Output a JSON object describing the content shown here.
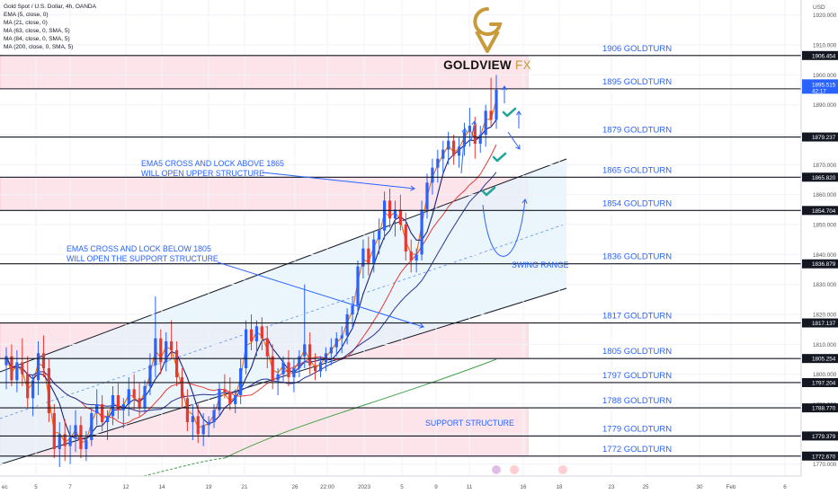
{
  "instrument": {
    "title": "Gold Spot / U.S. Dollar, 4h, OANDA",
    "indicators": [
      "EMA (5, close, 0)",
      "MA (21, close, 0)",
      "MA (63, close, 0, SMA, 5)",
      "MA (84, close, 0, SMA, 5)",
      "MA (200, close, 0, SMA, 5)"
    ]
  },
  "brand": {
    "name": "GOLDVIEW",
    "suffix": "FX"
  },
  "colors": {
    "zone_fill": "#fde4ea",
    "channel_fill": "#e4f3fb",
    "label_blue": "#2962ff",
    "candle_up": "#2962ff",
    "candle_down": "#e53935",
    "ema5": "#ef6c00",
    "ma21": "#1a237e",
    "ma63": "#e53935",
    "ma84": "#283593",
    "ma200": "#43a047"
  },
  "axis": {
    "currency": "USD",
    "y_ticks": [
      1920,
      1910,
      1900,
      1890,
      1880,
      1870,
      1860,
      1850,
      1840,
      1830,
      1820,
      1810,
      1800,
      1790,
      1780,
      1770
    ],
    "y_tick_labels": [
      "1920.000",
      "1910.000",
      "1900.000",
      "1890.000",
      "1880.000",
      "1870.000",
      "1860.000",
      "1850.000",
      "1840.000",
      "1830.000",
      "1820.000",
      "1810.000",
      "1800.000",
      "1790.000",
      "1780.000",
      "1770.000"
    ],
    "x_labels": [
      "ec",
      "5",
      "7",
      "12",
      "14",
      "19",
      "21",
      "26",
      "22:00",
      "2023",
      "5",
      "9",
      "11",
      "16",
      "18",
      "23",
      "25",
      "30",
      "Feb",
      "6"
    ]
  },
  "chart_data": {
    "type": "candlestick",
    "y_range": [
      1766,
      1925
    ],
    "current_price": "1895.515",
    "countdown": "42:17",
    "level_tags": [
      "1906.454",
      "1895.337",
      "1879.237",
      "1865.820",
      "1854.704",
      "1836.879",
      "1817.137",
      "1805.254",
      "1797.204",
      "1788.770",
      "1779.379",
      "1772.670"
    ],
    "levels": [
      {
        "value": 1906.454,
        "label": "1906 GOLDTURN"
      },
      {
        "value": 1895.337,
        "label": "1895 GOLDTURN"
      },
      {
        "value": 1879.237,
        "label": "1879 GOLDTURN"
      },
      {
        "value": 1865.82,
        "label": "1865 GOLDTURN"
      },
      {
        "value": 1854.704,
        "label": "1854 GOLDTURN"
      },
      {
        "value": 1836.879,
        "label": "1836 GOLDTURN"
      },
      {
        "value": 1817.137,
        "label": "1817 GOLDTURN"
      },
      {
        "value": 1805.254,
        "label": "1805 GOLDTURN"
      },
      {
        "value": 1797.204,
        "label": "1797 GOLDTURN"
      },
      {
        "value": 1788.77,
        "label": "1788 GOLDTURN"
      },
      {
        "value": 1779.379,
        "label": "1779 GOLDTURN"
      },
      {
        "value": 1772.67,
        "label": "1772 GOLDTURN"
      }
    ],
    "zones": [
      {
        "from": 1895.3,
        "to": 1906.5,
        "x_end": 0.63
      },
      {
        "from": 1854.7,
        "to": 1865.8,
        "x_end": 0.63
      },
      {
        "from": 1805.3,
        "to": 1817.1,
        "x_end": 0.63
      },
      {
        "from": 1772.7,
        "to": 1788.8,
        "x_end": 0.63
      }
    ],
    "annotations": [
      {
        "text": [
          "EMA5 CROSS AND LOCK ABOVE 1865",
          "WILL OPEN UPPER STRUCTURE"
        ]
      },
      {
        "text": [
          "EMA5 CROSS AND LOCK BELOW 1805",
          "WILL OPEN THE SUPPORT STRUCTURE"
        ]
      },
      {
        "text": [
          "SWING RANGE"
        ]
      },
      {
        "text": [
          "SUPPORT STRUCTURE"
        ]
      }
    ],
    "ohlc": [
      [
        1803,
        1809,
        1795,
        1806
      ],
      [
        1806,
        1810,
        1796,
        1798
      ],
      [
        1798,
        1808,
        1794,
        1804
      ],
      [
        1804,
        1812,
        1796,
        1800
      ],
      [
        1800,
        1806,
        1789,
        1792
      ],
      [
        1792,
        1800,
        1786,
        1798
      ],
      [
        1798,
        1811,
        1793,
        1807
      ],
      [
        1807,
        1813,
        1799,
        1802
      ],
      [
        1802,
        1805,
        1784,
        1787
      ],
      [
        1787,
        1790,
        1772,
        1775
      ],
      [
        1775,
        1784,
        1769,
        1780
      ],
      [
        1780,
        1785,
        1771,
        1776
      ],
      [
        1776,
        1783,
        1770,
        1779
      ],
      [
        1779,
        1788,
        1774,
        1783
      ],
      [
        1783,
        1786,
        1772,
        1775
      ],
      [
        1775,
        1781,
        1771,
        1778
      ],
      [
        1778,
        1789,
        1776,
        1787
      ],
      [
        1787,
        1795,
        1783,
        1790
      ],
      [
        1790,
        1793,
        1781,
        1784
      ],
      [
        1784,
        1788,
        1778,
        1786
      ],
      [
        1786,
        1796,
        1783,
        1793
      ],
      [
        1793,
        1797,
        1785,
        1788
      ],
      [
        1788,
        1792,
        1782,
        1790
      ],
      [
        1790,
        1799,
        1786,
        1795
      ],
      [
        1795,
        1800,
        1788,
        1792
      ],
      [
        1792,
        1797,
        1786,
        1789
      ],
      [
        1789,
        1798,
        1787,
        1796
      ],
      [
        1796,
        1807,
        1793,
        1803
      ],
      [
        1803,
        1826,
        1799,
        1812
      ],
      [
        1812,
        1815,
        1800,
        1804
      ],
      [
        1804,
        1814,
        1801,
        1811
      ],
      [
        1811,
        1818,
        1805,
        1808
      ],
      [
        1808,
        1811,
        1796,
        1799
      ],
      [
        1799,
        1802,
        1789,
        1792
      ],
      [
        1792,
        1795,
        1781,
        1784
      ],
      [
        1784,
        1790,
        1778,
        1786
      ],
      [
        1786,
        1790,
        1777,
        1780
      ],
      [
        1780,
        1787,
        1776,
        1783
      ],
      [
        1783,
        1786,
        1779,
        1784
      ],
      [
        1784,
        1790,
        1782,
        1788
      ],
      [
        1788,
        1797,
        1786,
        1795
      ],
      [
        1795,
        1800,
        1792,
        1794
      ],
      [
        1794,
        1799,
        1788,
        1790
      ],
      [
        1790,
        1795,
        1787,
        1793
      ],
      [
        1793,
        1805,
        1790,
        1802
      ],
      [
        1802,
        1818,
        1800,
        1815
      ],
      [
        1815,
        1820,
        1808,
        1811
      ],
      [
        1811,
        1818,
        1806,
        1816
      ],
      [
        1816,
        1819,
        1808,
        1812
      ],
      [
        1812,
        1816,
        1802,
        1806
      ],
      [
        1806,
        1810,
        1795,
        1798
      ],
      [
        1798,
        1802,
        1793,
        1800
      ],
      [
        1800,
        1806,
        1797,
        1804
      ],
      [
        1804,
        1808,
        1796,
        1799
      ],
      [
        1799,
        1805,
        1794,
        1802
      ],
      [
        1802,
        1808,
        1799,
        1806
      ],
      [
        1806,
        1830,
        1802,
        1810
      ],
      [
        1810,
        1814,
        1800,
        1803
      ],
      [
        1803,
        1807,
        1798,
        1801
      ],
      [
        1801,
        1806,
        1799,
        1804
      ],
      [
        1804,
        1809,
        1801,
        1807
      ],
      [
        1807,
        1812,
        1803,
        1809
      ],
      [
        1809,
        1814,
        1806,
        1812
      ],
      [
        1812,
        1816,
        1807,
        1813
      ],
      [
        1813,
        1822,
        1810,
        1820
      ],
      [
        1820,
        1826,
        1815,
        1823
      ],
      [
        1823,
        1838,
        1820,
        1836
      ],
      [
        1836,
        1845,
        1832,
        1842
      ],
      [
        1842,
        1846,
        1833,
        1837
      ],
      [
        1837,
        1848,
        1834,
        1845
      ],
      [
        1845,
        1852,
        1840,
        1848
      ],
      [
        1848,
        1861,
        1845,
        1858
      ],
      [
        1858,
        1862,
        1849,
        1852
      ],
      [
        1852,
        1858,
        1846,
        1855
      ],
      [
        1855,
        1860,
        1848,
        1850
      ],
      [
        1850,
        1854,
        1838,
        1841
      ],
      [
        1841,
        1845,
        1834,
        1838
      ],
      [
        1838,
        1842,
        1834,
        1840
      ],
      [
        1840,
        1858,
        1838,
        1855
      ],
      [
        1855,
        1867,
        1852,
        1864
      ],
      [
        1864,
        1872,
        1860,
        1869
      ],
      [
        1869,
        1875,
        1864,
        1872
      ],
      [
        1872,
        1878,
        1867,
        1875
      ],
      [
        1875,
        1881,
        1870,
        1878
      ],
      [
        1878,
        1880,
        1870,
        1873
      ],
      [
        1873,
        1879,
        1869,
        1876
      ],
      [
        1876,
        1884,
        1873,
        1881
      ],
      [
        1881,
        1889,
        1876,
        1883
      ],
      [
        1883,
        1886,
        1872,
        1877
      ],
      [
        1877,
        1883,
        1874,
        1880
      ],
      [
        1880,
        1890,
        1876,
        1888
      ],
      [
        1888,
        1899,
        1883,
        1885
      ],
      [
        1885,
        1900,
        1882,
        1895
      ]
    ]
  }
}
